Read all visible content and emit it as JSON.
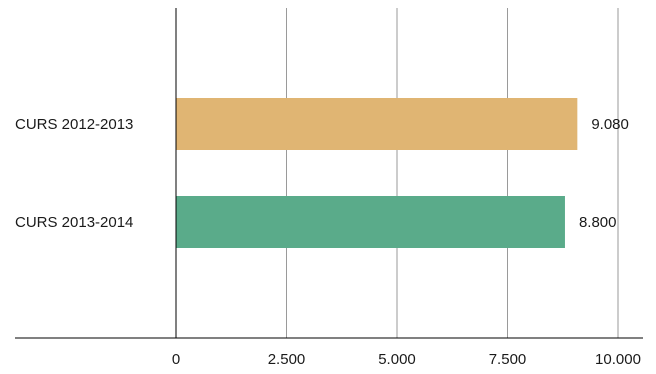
{
  "chart_data": {
    "type": "bar",
    "orientation": "horizontal",
    "categories": [
      "CURS 2012-2013",
      "CURS 2013-2014"
    ],
    "values": [
      9080,
      8800
    ],
    "value_labels": [
      "9.080",
      "8.800"
    ],
    "colors": [
      "#e0b573",
      "#5aab8a"
    ],
    "xlim": [
      0,
      10000
    ],
    "x_ticks": [
      0,
      2500,
      5000,
      7500,
      10000
    ],
    "x_tick_labels": [
      "0",
      "2.500",
      "5.000",
      "7.500",
      "10.000"
    ],
    "grid": "vertical",
    "title": "",
    "xlabel": "",
    "ylabel": ""
  }
}
